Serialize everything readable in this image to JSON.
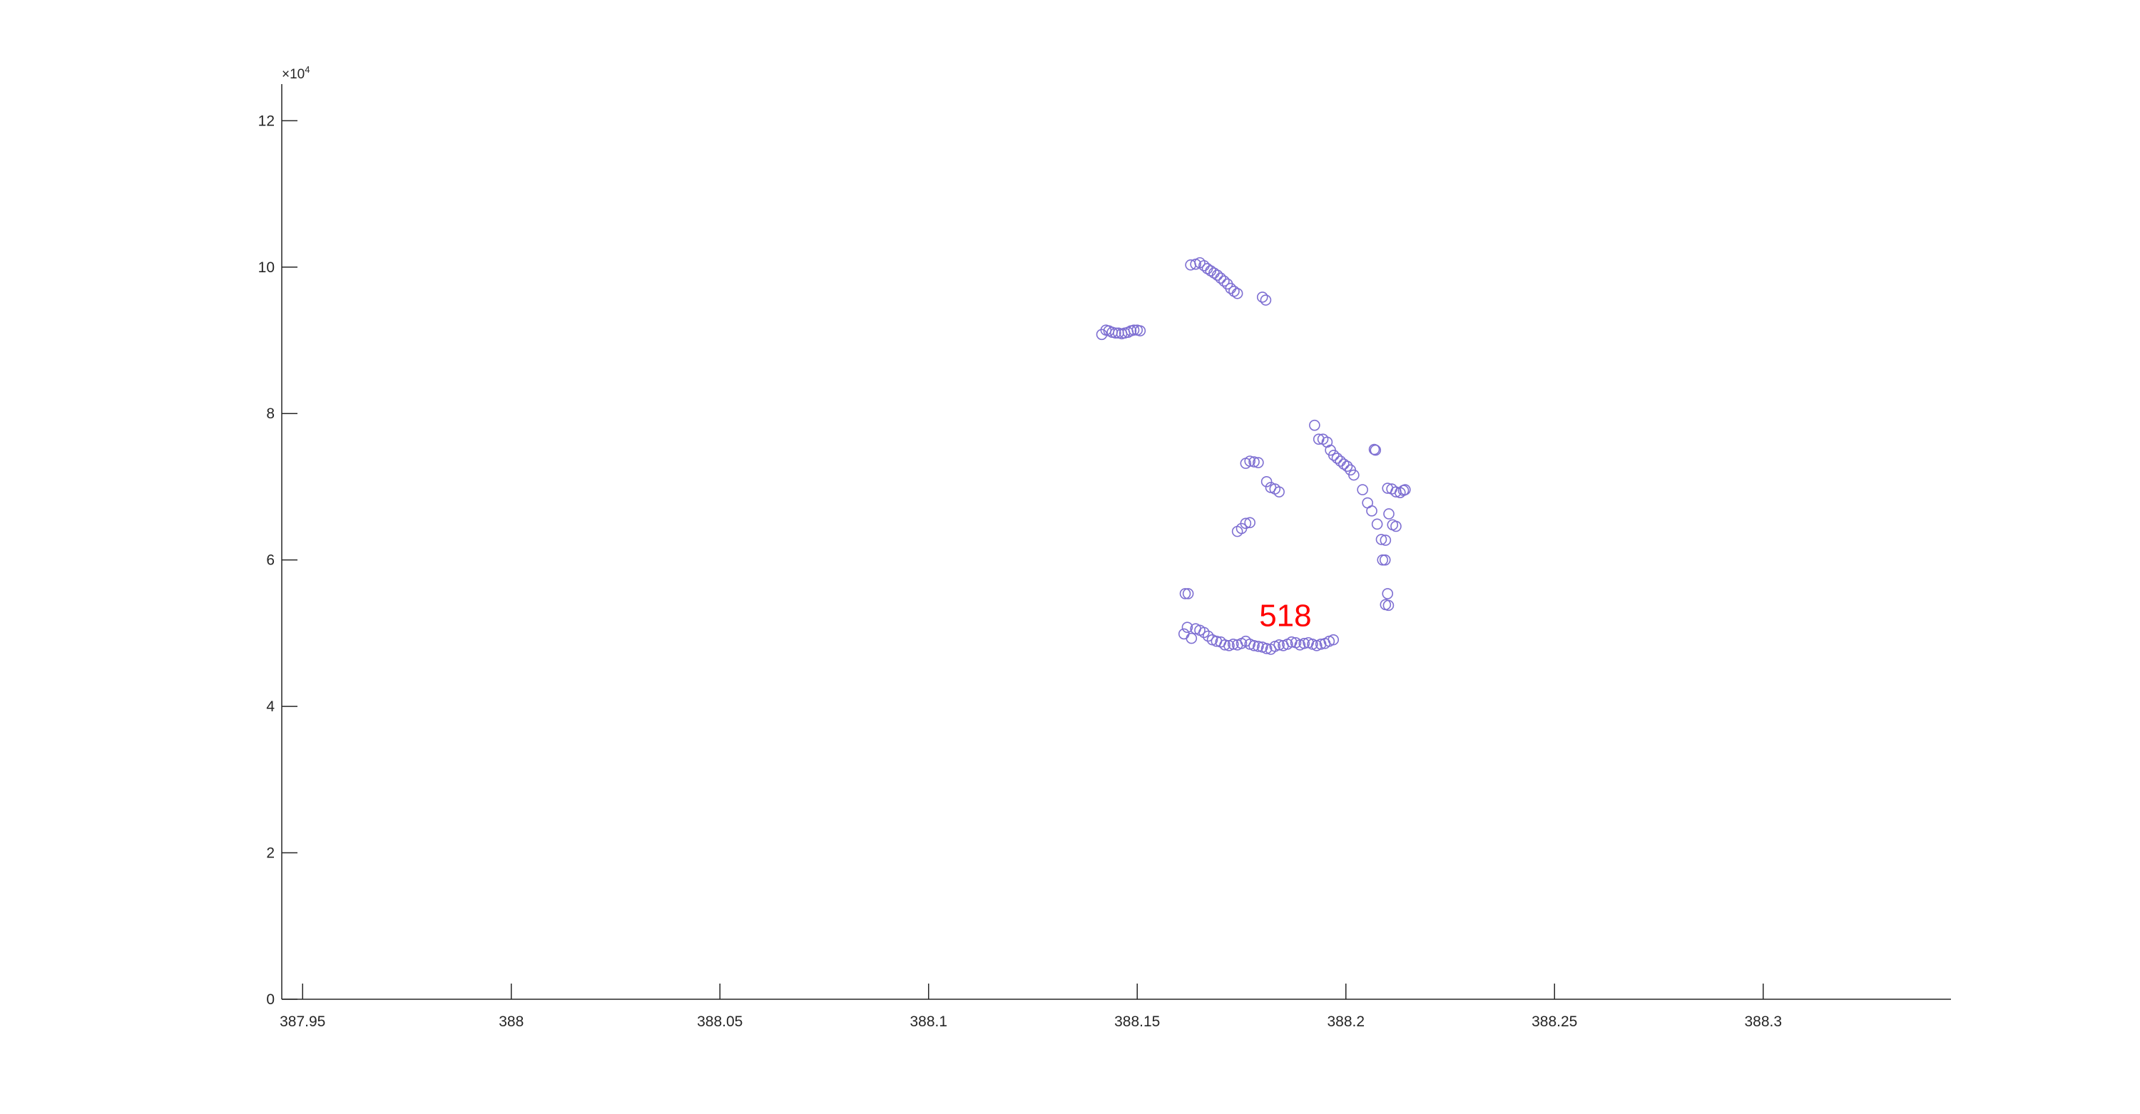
{
  "chart_data": {
    "type": "scatter",
    "title": "",
    "xlabel": "",
    "ylabel": "",
    "xlim": [
      387.945,
      388.345
    ],
    "ylim": [
      0,
      125000
    ],
    "y_exponent_base": "×10",
    "y_exponent_power": "4",
    "x_ticks": [
      387.95,
      388.0,
      388.05,
      388.1,
      388.15,
      388.2,
      388.25,
      388.3
    ],
    "x_tick_labels": [
      "387.95",
      "388",
      "388.05",
      "388.1",
      "388.15",
      "388.2",
      "388.25",
      "388.3"
    ],
    "y_ticks": [
      0,
      20000,
      40000,
      60000,
      80000,
      100000,
      120000
    ],
    "y_tick_labels": [
      "0",
      "2",
      "4",
      "6",
      "8",
      "10",
      "12"
    ],
    "grid": false,
    "marker": "circle-open",
    "marker_color": "#7e6fd2",
    "annotation": {
      "text": "518",
      "color": "#ff0000",
      "x": 388.1855,
      "y": 52500
    },
    "series": [
      {
        "x": [
          388.1415,
          388.1425,
          388.1432,
          388.144,
          388.1448,
          388.1455,
          388.1463,
          388.147,
          388.1478,
          388.1485,
          388.1492,
          388.15,
          388.1507,
          388.1628,
          388.164,
          388.165,
          388.166,
          388.1668,
          388.1676,
          388.1684,
          388.1692,
          388.17,
          388.1708,
          388.1716,
          388.1724,
          388.1732,
          388.174,
          388.18,
          388.1808,
          388.176,
          388.177,
          388.178,
          388.179,
          388.181,
          388.182,
          388.183,
          388.184,
          388.174,
          388.175,
          388.176,
          388.177,
          388.1925,
          388.1935,
          388.1945,
          388.1955,
          388.1963,
          388.1971,
          388.1979,
          388.1987,
          388.1995,
          388.2003,
          388.2011,
          388.2019,
          388.2068,
          388.2071,
          388.21,
          388.211,
          388.212,
          388.213,
          388.2138,
          388.2142,
          388.204,
          388.2052,
          388.2062,
          388.2075,
          388.2085,
          388.2095,
          388.2103,
          388.2112,
          388.212,
          388.2088,
          388.2094,
          388.21,
          388.2095,
          388.2102,
          388.1615,
          388.1622,
          388.1612,
          388.162,
          388.163,
          388.164,
          388.165,
          388.166,
          388.167,
          388.168,
          388.169,
          388.17,
          388.171,
          388.172,
          388.173,
          388.174,
          388.175,
          388.176,
          388.177,
          388.178,
          388.179,
          388.18,
          388.181,
          388.182,
          388.183,
          388.184,
          388.185,
          388.186,
          388.187,
          388.188,
          388.189,
          388.19,
          388.191,
          388.192,
          388.193,
          388.194,
          388.195,
          388.196,
          388.197
        ],
        "y": [
          90800,
          91400,
          91300,
          91100,
          91000,
          91000,
          90900,
          91000,
          91100,
          91300,
          91400,
          91400,
          91300,
          100300,
          100400,
          100600,
          100200,
          99800,
          99500,
          99200,
          98900,
          98500,
          98100,
          97700,
          97100,
          96700,
          96400,
          95900,
          95500,
          73200,
          73500,
          73400,
          73300,
          70700,
          69900,
          69700,
          69300,
          63900,
          64300,
          65000,
          65100,
          78400,
          76500,
          76500,
          76100,
          75000,
          74300,
          73900,
          73500,
          73100,
          72800,
          72300,
          71600,
          75100,
          75000,
          69800,
          69700,
          69300,
          69200,
          69500,
          69600,
          69600,
          67800,
          66700,
          64900,
          62800,
          62700,
          66300,
          64800,
          64600,
          60000,
          60000,
          55400,
          53900,
          53800,
          55400,
          55400,
          49900,
          50800,
          49300,
          50600,
          50400,
          50100,
          49600,
          49100,
          48900,
          48800,
          48400,
          48300,
          48500,
          48400,
          48600,
          48900,
          48500,
          48300,
          48200,
          48100,
          47900,
          47800,
          48200,
          48400,
          48300,
          48500,
          48800,
          48700,
          48400,
          48600,
          48700,
          48500,
          48300,
          48500,
          48600,
          48900,
          49100
        ]
      }
    ]
  }
}
